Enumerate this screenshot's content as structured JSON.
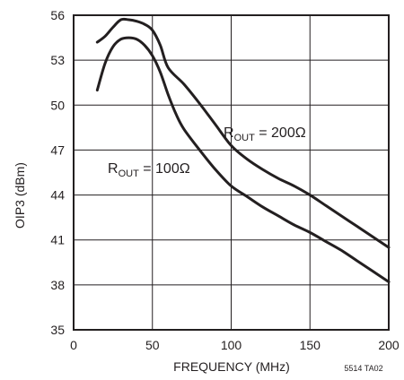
{
  "chart_data": {
    "type": "line",
    "xlabel": "FREQUENCY (MHz)",
    "ylabel": "OIP3 (dBm)",
    "xlim": [
      0,
      200
    ],
    "ylim": [
      35,
      56
    ],
    "xticks": [
      0,
      50,
      100,
      150,
      200
    ],
    "yticks": [
      35,
      38,
      41,
      44,
      47,
      50,
      53,
      56
    ],
    "grid": true,
    "series": [
      {
        "name": "ROUT = 200Ω",
        "label": {
          "base": "R",
          "sub": "OUT",
          "rest": " = 200Ω"
        },
        "x": [
          15,
          20,
          25,
          30,
          35,
          40,
          45,
          50,
          55,
          60,
          70,
          80,
          90,
          100,
          110,
          120,
          130,
          140,
          150,
          160,
          170,
          180,
          190,
          200
        ],
        "y": [
          54.2,
          54.6,
          55.2,
          55.7,
          55.7,
          55.6,
          55.4,
          55.0,
          54.0,
          52.5,
          51.4,
          50.1,
          48.7,
          47.3,
          46.4,
          45.7,
          45.1,
          44.6,
          44.0,
          43.3,
          42.6,
          41.9,
          41.2,
          40.5
        ]
      },
      {
        "name": "ROUT = 100Ω",
        "label": {
          "base": "R",
          "sub": "OUT",
          "rest": " = 100Ω"
        },
        "x": [
          15,
          20,
          25,
          30,
          35,
          40,
          45,
          50,
          55,
          60,
          65,
          70,
          80,
          90,
          100,
          110,
          120,
          130,
          140,
          150,
          160,
          170,
          180,
          190,
          200
        ],
        "y": [
          51.0,
          52.8,
          53.9,
          54.4,
          54.5,
          54.4,
          54.0,
          53.3,
          52.2,
          50.7,
          49.4,
          48.4,
          47.0,
          45.7,
          44.6,
          43.9,
          43.2,
          42.6,
          42.0,
          41.5,
          40.9,
          40.3,
          39.6,
          38.9,
          38.2
        ]
      }
    ],
    "annotation": "5514 TA02",
    "colors": {
      "line": "#231f20",
      "grid": "#231f20"
    }
  }
}
